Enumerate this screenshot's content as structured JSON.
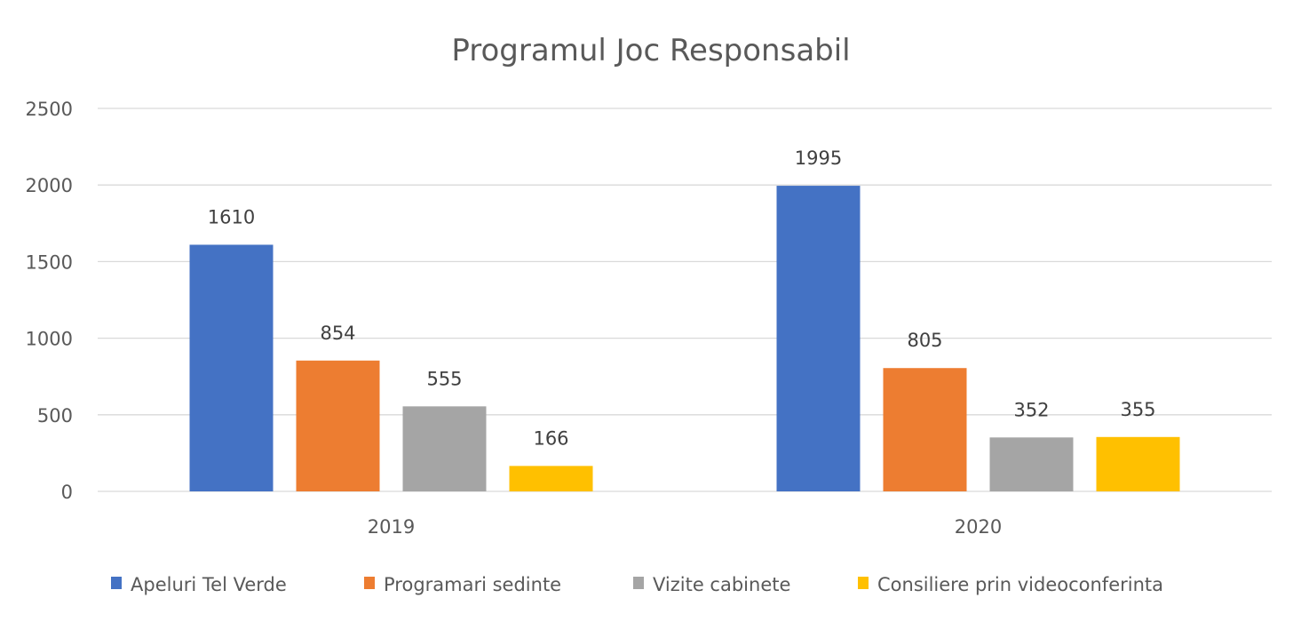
{
  "chart_data": {
    "type": "bar",
    "title": "Programul Joc Responsabil",
    "xlabel": "",
    "ylabel": "",
    "categories": [
      "2019",
      "2020"
    ],
    "ylim": [
      0,
      2500
    ],
    "yticks": [
      0,
      500,
      1000,
      1500,
      2000,
      2500
    ],
    "grid": true,
    "legend_position": "bottom",
    "series": [
      {
        "name": "Apeluri Tel Verde",
        "color": "#4472C4",
        "values": [
          1610,
          1995
        ]
      },
      {
        "name": "Programari sedinte",
        "color": "#ED7D31",
        "values": [
          854,
          805
        ]
      },
      {
        "name": "Vizite cabinete",
        "color": "#A5A5A5",
        "values": [
          555,
          352
        ]
      },
      {
        "name": "Consiliere prin videoconferinta",
        "color": "#FFC000",
        "values": [
          166,
          355
        ]
      }
    ]
  }
}
